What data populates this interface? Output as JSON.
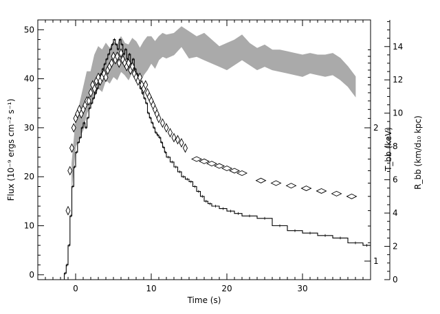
{
  "chart_data": {
    "type": "line",
    "xlabel": "Time (s)",
    "ylabel": "Flux (10⁻⁹ ergs cm⁻² s⁻¹)",
    "right_label_temperature": "T_bb (keV)",
    "right_label_radius": "R_bb (km/d₁₀ kpc)",
    "xlim": [
      -5,
      39
    ],
    "xticks": [
      0,
      10,
      20,
      30
    ],
    "ylim": [
      -1,
      52
    ],
    "yticks": [
      0,
      10,
      20,
      30,
      40,
      50
    ],
    "temperature_axis": {
      "scale": "log",
      "ticks": [
        1,
        2
      ]
    },
    "radius_axis": {
      "range": [
        0,
        15.6
      ],
      "ticks": [
        0,
        2,
        4,
        6,
        8,
        10,
        12,
        14
      ]
    },
    "grid": false,
    "series": [
      {
        "style": "histogram",
        "color": "#000000",
        "x": [
          -1.5,
          -1.25,
          -1,
          -0.75,
          -0.5,
          -0.25,
          0,
          0.25,
          0.5,
          0.75,
          1,
          1.25,
          1.5,
          1.75,
          2,
          2.25,
          2.5,
          2.75,
          3,
          3.25,
          3.5,
          3.75,
          4,
          4.25,
          4.5,
          4.75,
          5,
          5.25,
          5.5,
          5.75,
          6,
          6.25,
          6.5,
          6.75,
          7,
          7.25,
          7.5,
          7.75,
          8,
          8.25,
          8.5,
          8.75,
          9,
          9.25,
          9.5,
          9.75,
          10,
          10.25,
          10.5,
          10.75,
          11,
          11.25,
          11.5,
          11.75,
          12,
          12.5,
          13,
          13.5,
          14,
          14.5,
          15,
          15.5,
          16,
          16.5,
          17,
          17.5,
          18,
          19,
          20,
          21,
          22,
          24,
          26,
          28,
          30,
          32,
          34,
          36,
          38
        ],
        "values": [
          0.3,
          2,
          6,
          12,
          18,
          22,
          25,
          27,
          28,
          30,
          31,
          30,
          32,
          34,
          35,
          36,
          37,
          38,
          39,
          41,
          42,
          43,
          44,
          45,
          46,
          47,
          48,
          47,
          46,
          48,
          47,
          45,
          46,
          44,
          45,
          43,
          44,
          42,
          41,
          40,
          38,
          37,
          36,
          35,
          33,
          32,
          31,
          30,
          29,
          28.5,
          28,
          27,
          26,
          25,
          24,
          23,
          22,
          21,
          20,
          19.5,
          19,
          18,
          17,
          16,
          15,
          14.5,
          14,
          13.5,
          13,
          12.5,
          12,
          11.5,
          10,
          9,
          8.5,
          8,
          7.5,
          6.5,
          6
        ]
      },
      {
        "style": "diamonds",
        "axis": "temperature_keV",
        "x": [
          -1,
          -0.75,
          -0.5,
          -0.25,
          0,
          0.25,
          0.5,
          0.75,
          1,
          1.25,
          1.5,
          1.75,
          2,
          2.25,
          2.5,
          2.75,
          3,
          3.25,
          3.5,
          3.75,
          4,
          4.25,
          4.5,
          4.75,
          5,
          5.25,
          5.5,
          5.75,
          6,
          6.25,
          6.5,
          6.75,
          7,
          7.25,
          7.5,
          7.75,
          8,
          8.25,
          8.5,
          8.75,
          9,
          9.25,
          9.5,
          9.75,
          10,
          10.25,
          10.5,
          10.75,
          11,
          11.5,
          12,
          12.5,
          13,
          13.5,
          14,
          14.5,
          16,
          17,
          18,
          19,
          20,
          21,
          22,
          24.5,
          26.5,
          28.5,
          30.5,
          32.5,
          34.5,
          36.5
        ],
        "values": [
          1.3,
          1.6,
          1.8,
          2.0,
          2.1,
          2.15,
          2.2,
          2.15,
          2.2,
          2.25,
          2.3,
          2.3,
          2.4,
          2.5,
          2.45,
          2.55,
          2.6,
          2.55,
          2.6,
          2.65,
          2.6,
          2.7,
          2.75,
          2.8,
          2.9,
          2.85,
          2.9,
          2.8,
          2.95,
          2.85,
          2.8,
          2.75,
          2.8,
          2.7,
          2.75,
          2.65,
          2.6,
          2.55,
          2.6,
          2.5,
          2.45,
          2.5,
          2.4,
          2.35,
          2.3,
          2.25,
          2.2,
          2.15,
          2.1,
          2.05,
          2.0,
          1.95,
          1.9,
          1.88,
          1.85,
          1.8,
          1.7,
          1.68,
          1.66,
          1.64,
          1.62,
          1.6,
          1.58,
          1.52,
          1.5,
          1.48,
          1.46,
          1.44,
          1.42,
          1.4
        ]
      },
      {
        "style": "band",
        "axis": "radius",
        "color": "#aaaaaa",
        "x": [
          -0.5,
          0,
          0.5,
          1,
          1.5,
          2,
          2.5,
          3,
          3.5,
          4,
          4.5,
          5,
          5.5,
          6,
          6.5,
          7,
          7.5,
          8,
          8.5,
          9,
          9.5,
          10,
          10.5,
          11,
          11.5,
          12,
          13,
          14,
          15,
          16,
          17,
          18,
          19,
          20,
          21,
          22,
          23,
          24,
          25,
          26,
          27,
          28,
          29,
          30,
          31,
          32,
          33,
          34,
          35,
          36,
          37
        ],
        "lower": [
          5.5,
          8,
          8.5,
          9,
          10,
          10.5,
          11,
          11.5,
          11.3,
          12,
          11.8,
          12.2,
          12,
          12.5,
          12.3,
          12,
          12.5,
          12.2,
          11.8,
          12.3,
          12.6,
          13,
          12.7,
          13.2,
          13.4,
          13.3,
          13.5,
          14,
          13.3,
          13.4,
          13.2,
          13.0,
          12.8,
          12.6,
          12.9,
          13.2,
          12.9,
          12.6,
          12.8,
          12.6,
          12.5,
          12.4,
          12.3,
          12.2,
          12.4,
          12.3,
          12.2,
          12.3,
          12.0,
          11.6,
          11.0
        ],
        "upper": [
          7.0,
          9.5,
          10.5,
          11.5,
          12.5,
          12.5,
          13.5,
          14,
          13.8,
          14.2,
          13.9,
          14.3,
          14.1,
          14.6,
          14.2,
          14.1,
          14.5,
          14.3,
          13.9,
          14.3,
          14.6,
          14.6,
          14.3,
          14.6,
          14.8,
          14.7,
          14.8,
          15.2,
          14.9,
          14.6,
          14.8,
          14.4,
          14.0,
          14.2,
          14.4,
          14.7,
          14.2,
          13.9,
          14.1,
          13.8,
          13.8,
          13.7,
          13.6,
          13.5,
          13.6,
          13.5,
          13.5,
          13.6,
          13.3,
          12.8,
          12.2
        ]
      }
    ]
  }
}
